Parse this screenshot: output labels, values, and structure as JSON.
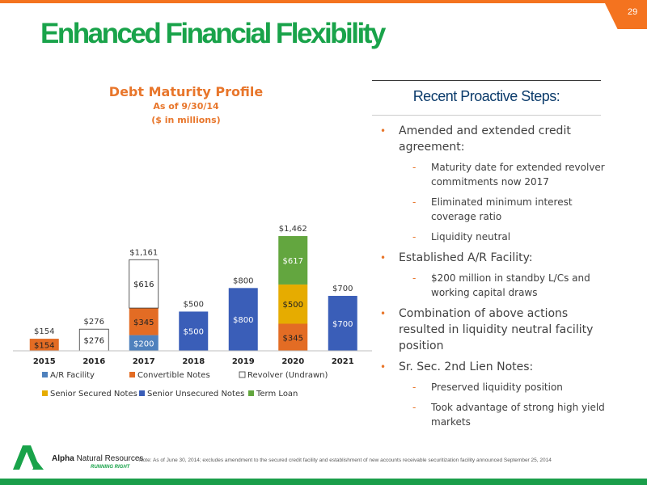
{
  "slide": {
    "title": "Enhanced Financial Flexibility",
    "page_number": "29",
    "brand_color": "#19a34a",
    "accent_color": "#f4731f"
  },
  "chart_data": {
    "type": "bar",
    "stacked": true,
    "title": "Debt Maturity Profile",
    "subtitle_1": "As of 9/30/14",
    "subtitle_2": "($ in millions)",
    "categories": [
      "2015",
      "2016",
      "2017",
      "2018",
      "2019",
      "2020",
      "2021"
    ],
    "series": [
      {
        "name": "A/R Facility",
        "color": "#4f81bd",
        "values": [
          0,
          0,
          200,
          0,
          0,
          0,
          0
        ]
      },
      {
        "name": "Convertible Notes",
        "color": "#e36c24",
        "values": [
          154,
          0,
          345,
          0,
          0,
          345,
          0
        ]
      },
      {
        "name": "Revolver (Undrawn)",
        "color": "#ffffff",
        "values": [
          0,
          276,
          616,
          0,
          0,
          0,
          0
        ]
      },
      {
        "name": "Senior Secured Notes",
        "color": "#e6ac00",
        "values": [
          0,
          0,
          0,
          0,
          0,
          500,
          0
        ]
      },
      {
        "name": "Senior Unsecured Notes",
        "color": "#3a5eb8",
        "values": [
          0,
          0,
          0,
          500,
          800,
          0,
          700
        ]
      },
      {
        "name": "Term Loan",
        "color": "#63a63f",
        "values": [
          0,
          0,
          0,
          0,
          0,
          617,
          0
        ]
      }
    ],
    "stack_order": [
      "A/R Facility",
      "Convertible Notes",
      "Senior Secured Notes",
      "Senior Unsecured Notes",
      "Revolver (Undrawn)",
      "Term Loan"
    ],
    "segment_labels": [
      {
        "category": "2015",
        "series": "Convertible Notes",
        "text": "$154"
      },
      {
        "category": "2016",
        "series": "Revolver (Undrawn)",
        "text": "$276"
      },
      {
        "category": "2017",
        "series": "A/R Facility",
        "text": "$200"
      },
      {
        "category": "2017",
        "series": "Convertible Notes",
        "text": "$345"
      },
      {
        "category": "2017",
        "series": "Revolver (Undrawn)",
        "text": "$616"
      },
      {
        "category": "2018",
        "series": "Senior Unsecured Notes",
        "text": "$500"
      },
      {
        "category": "2019",
        "series": "Senior Unsecured Notes",
        "text": "$800"
      },
      {
        "category": "2020",
        "series": "Convertible Notes",
        "text": "$345"
      },
      {
        "category": "2020",
        "series": "Senior Secured Notes",
        "text": "$500"
      },
      {
        "category": "2020",
        "series": "Term Loan",
        "text": "$617"
      },
      {
        "category": "2021",
        "series": "Senior Unsecured Notes",
        "text": "$700"
      }
    ],
    "totals": [
      "$154",
      "$276",
      "$1,161",
      "$500",
      "$800",
      "$1,462",
      "$700"
    ],
    "ylim": [
      0,
      1600
    ],
    "grid": false,
    "legend_position": "bottom"
  },
  "steps": {
    "title": "Recent Proactive Steps:",
    "items": [
      {
        "text": "Amended and extended credit agreement:",
        "sub": [
          "Maturity date for extended revolver commitments now 2017",
          "Eliminated minimum interest coverage ratio",
          "Liquidity neutral"
        ]
      },
      {
        "text": "Established A/R Facility:",
        "sub": [
          "$200 million in standby L/Cs and working capital draws"
        ]
      },
      {
        "text": "Combination of above actions resulted in liquidity neutral facility position",
        "sub": []
      },
      {
        "text": "Sr. Sec. 2nd Lien Notes:",
        "sub": [
          "Preserved liquidity position",
          "Took advantage of strong high yield markets"
        ]
      }
    ]
  },
  "footer": {
    "company_bold": "Alpha",
    "company_rest": "Natural Resources",
    "tagline": "RUNNING RIGHT",
    "logo_icon": "alpha-a-logo-icon",
    "note": "Note: As of June 30, 2014; excludes amendment to the secured credit facility and establishment of new accounts receivable securitization facility announced September 25, 2014"
  }
}
